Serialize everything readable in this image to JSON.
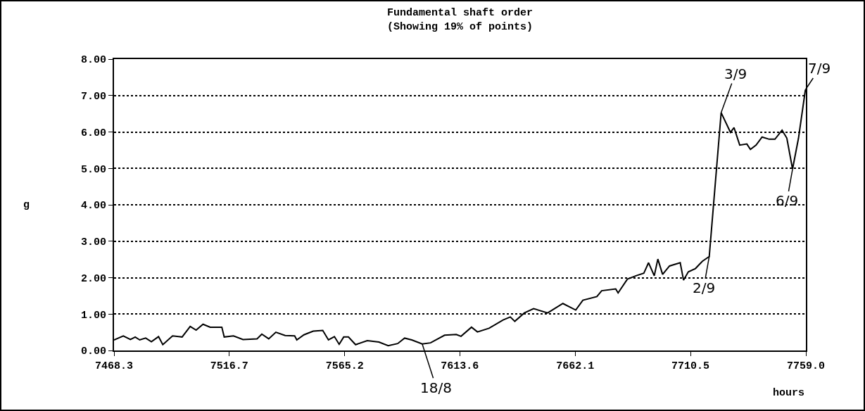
{
  "chart_data": {
    "type": "line",
    "title": "Fundamental shaft order",
    "subtitle": "(Showing 19% of points)",
    "xlabel": "hours",
    "ylabel": "g",
    "x": [
      7468.3,
      7472.2,
      7475.2,
      7477.2,
      7479.1,
      7481.6,
      7484.0,
      7487.0,
      7488.8,
      7492.9,
      7496.9,
      7500.3,
      7502.8,
      7505.7,
      7508.7,
      7513.6,
      7514.6,
      7518.5,
      7522.5,
      7528.4,
      7530.4,
      7533.3,
      7536.3,
      7540.2,
      7544.2,
      7545.1,
      7548.1,
      7552.0,
      7556.0,
      7558.4,
      7560.9,
      7562.9,
      7564.8,
      7566.8,
      7569.8,
      7574.7,
      7579.6,
      7583.5,
      7587.5,
      7590.4,
      7593.4,
      7597.8,
      7601.3,
      7607.2,
      7612.1,
      7614.1,
      7618.5,
      7621.0,
      7625.9,
      7631.8,
      7634.8,
      7636.7,
      7640.7,
      7644.6,
      7650.5,
      7656.9,
      7662.3,
      7665.3,
      7671.2,
      7673.2,
      7679.1,
      7680.1,
      7684.0,
      7688.0,
      7690.9,
      7692.9,
      7695.3,
      7696.8,
      7698.8,
      7701.7,
      7706.2,
      7707.6,
      7709.6,
      7712.6,
      7715.5,
      7718.4,
      7723.4,
      7727.3,
      7728.8,
      7731.2,
      7734.2,
      7735.7,
      7738.1,
      7740.6,
      7743.6,
      7746.0,
      7749.0,
      7751.0,
      7753.4,
      7755.9,
      7758.8
    ],
    "series": [
      {
        "color": "#000000",
        "values": [
          0.29,
          0.4,
          0.3,
          0.37,
          0.29,
          0.34,
          0.24,
          0.38,
          0.16,
          0.4,
          0.37,
          0.66,
          0.56,
          0.72,
          0.64,
          0.64,
          0.37,
          0.4,
          0.3,
          0.32,
          0.45,
          0.32,
          0.5,
          0.41,
          0.4,
          0.29,
          0.43,
          0.53,
          0.55,
          0.29,
          0.38,
          0.17,
          0.37,
          0.37,
          0.16,
          0.27,
          0.23,
          0.13,
          0.19,
          0.34,
          0.29,
          0.18,
          0.21,
          0.42,
          0.44,
          0.39,
          0.64,
          0.51,
          0.61,
          0.84,
          0.92,
          0.8,
          1.03,
          1.15,
          1.03,
          1.29,
          1.11,
          1.38,
          1.48,
          1.64,
          1.69,
          1.58,
          1.96,
          2.06,
          2.12,
          2.41,
          2.05,
          2.51,
          2.09,
          2.32,
          2.41,
          1.93,
          2.16,
          2.25,
          2.45,
          2.58,
          6.53,
          5.99,
          6.12,
          5.64,
          5.67,
          5.52,
          5.64,
          5.86,
          5.8,
          5.8,
          6.05,
          5.83,
          4.98,
          5.83,
          7.16
        ]
      }
    ],
    "xlim": [
      7468.3,
      7759.0
    ],
    "xticks": [
      7468.3,
      7516.7,
      7565.2,
      7613.6,
      7662.1,
      7710.5,
      {
        "value": 7759.0,
        "label": "7759.0"
      }
    ],
    "ylim": [
      0,
      8
    ],
    "yticks": [
      {
        "value": 0,
        "label": "0.00"
      },
      {
        "value": 1,
        "label": "1.00"
      },
      {
        "value": 2,
        "label": "2.00"
      },
      {
        "value": 3,
        "label": "3.00"
      },
      {
        "value": 4,
        "label": "4.00"
      },
      {
        "value": 5,
        "label": "5.00"
      },
      {
        "value": 6,
        "label": "6.00"
      },
      {
        "value": 7,
        "label": "7.00"
      },
      {
        "value": 8,
        "label": "8.00"
      }
    ],
    "grid": "y",
    "marker": "none",
    "line_style": "solid",
    "annotations": [
      {
        "text": "18/8",
        "x": 7597.8,
        "y": 0.18
      },
      {
        "text": "2/9",
        "x": 7718.4,
        "y": 2.58
      },
      {
        "text": "3/9",
        "x": 7723.4,
        "y": 6.53
      },
      {
        "text": "6/9",
        "x": 7753.4,
        "y": 4.98
      },
      {
        "text": "7/9",
        "x": 7758.8,
        "y": 7.16
      }
    ]
  }
}
